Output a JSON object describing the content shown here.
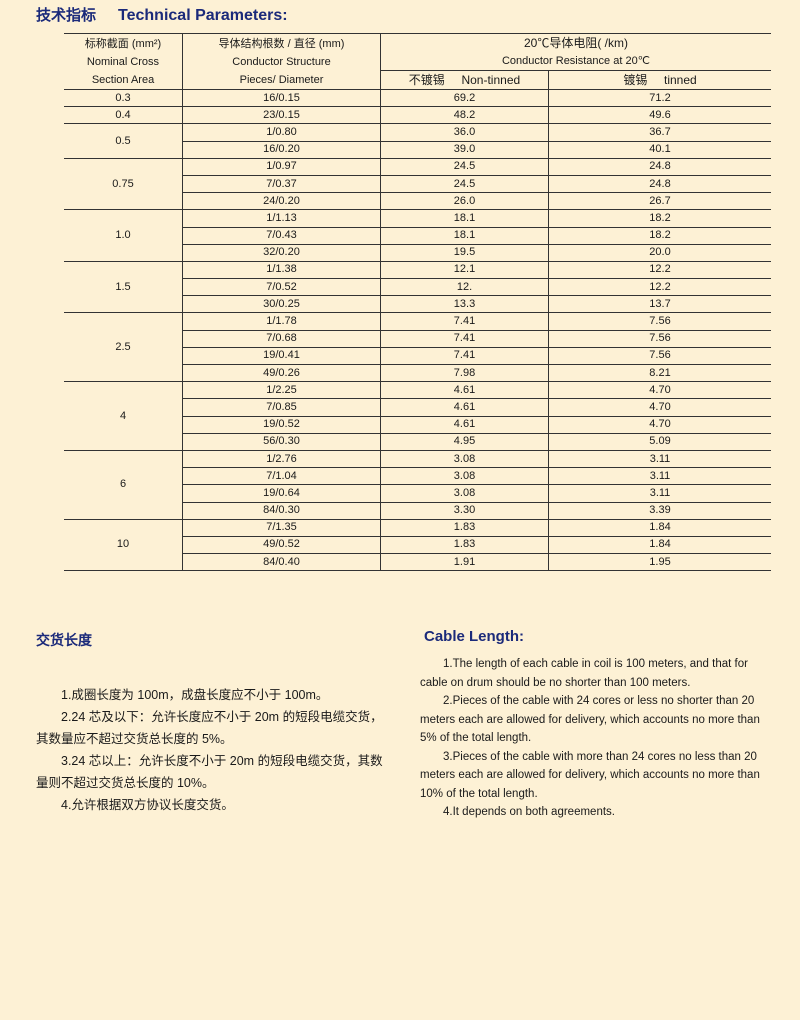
{
  "title": {
    "cn": "技术指标",
    "en": "Technical Parameters:"
  },
  "table": {
    "headers": {
      "area": [
        "标称截面 (mm²)",
        "Nominal Cross",
        "Section Area"
      ],
      "structure": [
        "导体结构根数 / 直径 (mm)",
        "Conductor Structure",
        "Pieces/ Diameter"
      ],
      "resistance": [
        "20℃导体电阻(   /km)",
        "Conductor Resistance at 20℃"
      ],
      "non_tinned": "不镀锡     Non-tinned",
      "tinned": "镀锡     tinned"
    },
    "groups": [
      {
        "area": "0.3",
        "rows": [
          [
            "16/0.15",
            "69.2",
            "71.2"
          ]
        ]
      },
      {
        "area": "0.4",
        "rows": [
          [
            "23/0.15",
            "48.2",
            "49.6"
          ]
        ]
      },
      {
        "area": "0.5",
        "rows": [
          [
            "1/0.80",
            "36.0",
            "36.7"
          ],
          [
            "16/0.20",
            "39.0",
            "40.1"
          ]
        ]
      },
      {
        "area": "0.75",
        "rows": [
          [
            "1/0.97",
            "24.5",
            "24.8"
          ],
          [
            "7/0.37",
            "24.5",
            "24.8"
          ],
          [
            "24/0.20",
            "26.0",
            "26.7"
          ]
        ]
      },
      {
        "area": "1.0",
        "rows": [
          [
            "1/1.13",
            "18.1",
            "18.2"
          ],
          [
            "7/0.43",
            "18.1",
            "18.2"
          ],
          [
            "32/0.20",
            "19.5",
            "20.0"
          ]
        ]
      },
      {
        "area": "1.5",
        "rows": [
          [
            "1/1.38",
            "12.1",
            "12.2"
          ],
          [
            "7/0.52",
            "12.",
            "12.2"
          ],
          [
            "30/0.25",
            "13.3",
            "13.7"
          ]
        ]
      },
      {
        "area": "2.5",
        "rows": [
          [
            "1/1.78",
            "7.41",
            "7.56"
          ],
          [
            "7/0.68",
            "7.41",
            "7.56"
          ],
          [
            "19/0.41",
            "7.41",
            "7.56"
          ],
          [
            "49/0.26",
            "7.98",
            "8.21"
          ]
        ]
      },
      {
        "area": "4",
        "rows": [
          [
            "1/2.25",
            "4.61",
            "4.70"
          ],
          [
            "7/0.85",
            "4.61",
            "4.70"
          ],
          [
            "19/0.52",
            "4.61",
            "4.70"
          ],
          [
            "56/0.30",
            "4.95",
            "5.09"
          ]
        ]
      },
      {
        "area": "6",
        "rows": [
          [
            "1/2.76",
            "3.08",
            "3.11"
          ],
          [
            "7/1.04",
            "3.08",
            "3.11"
          ],
          [
            "19/0.64",
            "3.08",
            "3.11"
          ],
          [
            "84/0.30",
            "3.30",
            "3.39"
          ]
        ]
      },
      {
        "area": "10",
        "rows": [
          [
            "7/1.35",
            "1.83",
            "1.84"
          ],
          [
            "49/0.52",
            "1.83",
            "1.84"
          ],
          [
            "84/0.40",
            "1.91",
            "1.95"
          ]
        ]
      }
    ]
  },
  "cn_section": {
    "heading": "交货长度",
    "items": [
      "1.成圈长度为 100m，成盘长度应不小于 100m。",
      "2.24 芯及以下：允许长度应不小于 20m 的短段电缆交货，其数量应不超过交货总长度的 5%。",
      "3.24 芯以上：允许长度不小于 20m 的短段电缆交货，其数量则不超过交货总长度的 10%。",
      "4.允许根据双方协议长度交货。"
    ]
  },
  "en_section": {
    "heading": "Cable Length:",
    "items": [
      "1.The length of each cable in coil is 100 meters, and that for cable on drum should be no shorter than 100 meters.",
      "2.Pieces of the cable  with 24 cores or less no shorter than 20 meters each are allowed for delivery, which accounts no more than 5% of the total length.",
      "3.Pieces of the cable with more than 24 cores no less than 20 meters each are allowed for delivery, which accounts  no more than 10% of the total length.",
      "4.It depends on both agreements."
    ]
  },
  "colors": {
    "background": "#fdf1d5",
    "heading": "#1b2a7a"
  }
}
